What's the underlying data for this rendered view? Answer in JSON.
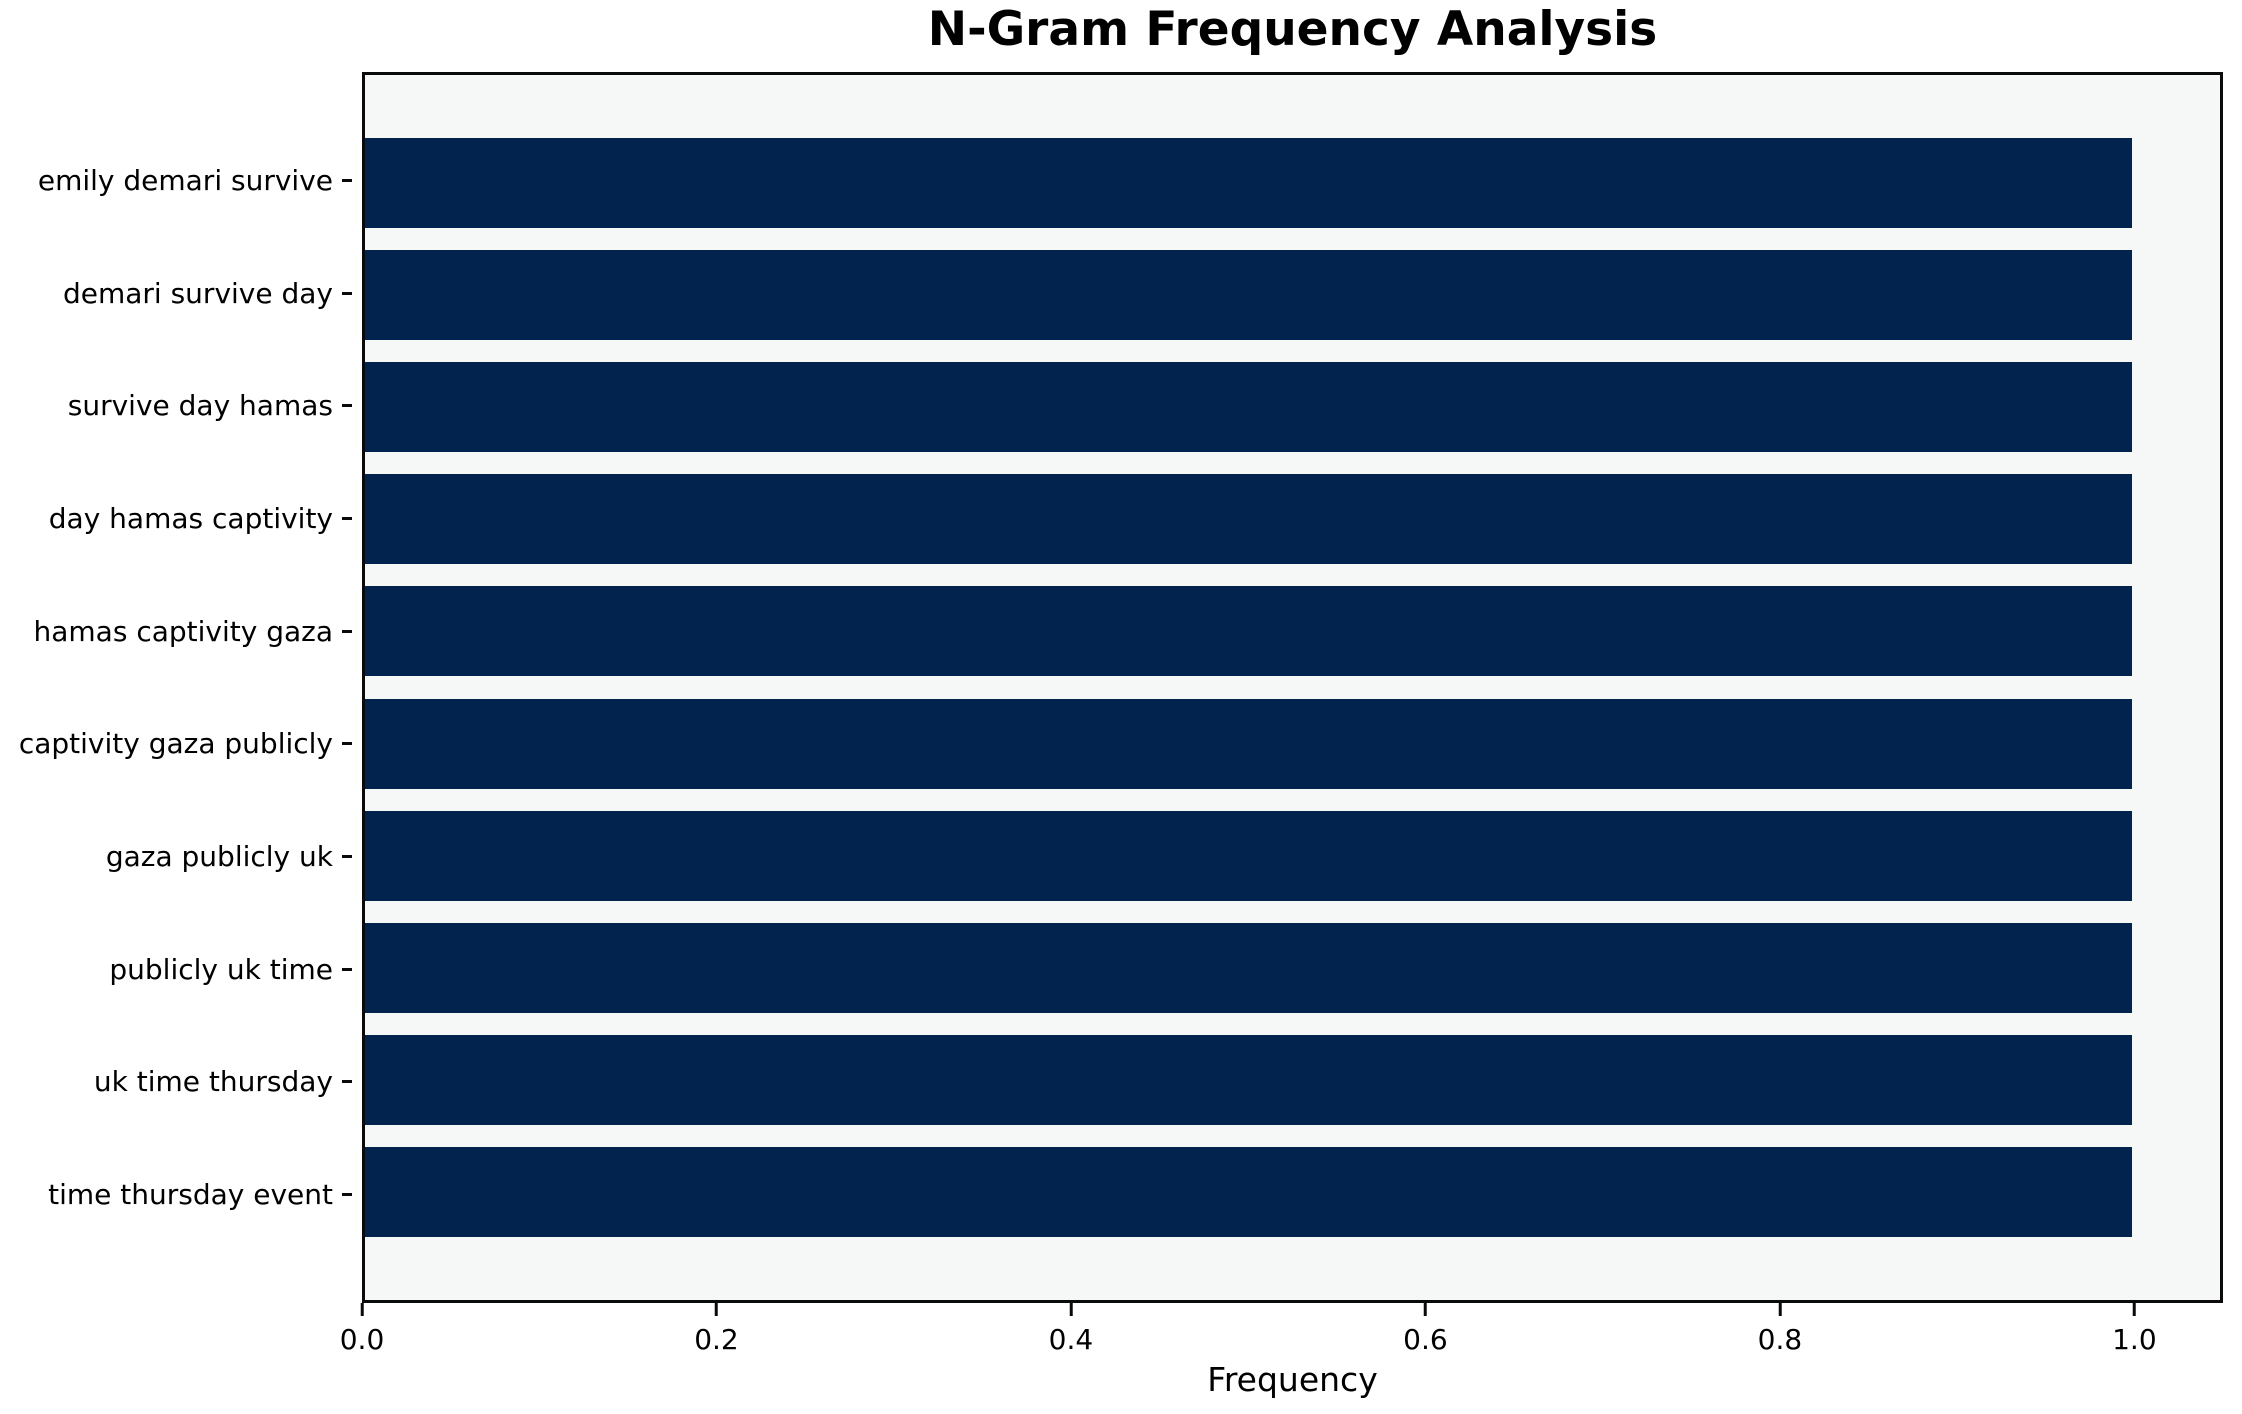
{
  "colors": {
    "bar": "#02234e",
    "plot_background": "#f6f7f7",
    "figure_background": "#ffffff",
    "spine": "#0a0a0a",
    "text": "#000000"
  },
  "chart_data": {
    "type": "bar",
    "orientation": "horizontal",
    "title": "N-Gram Frequency Analysis",
    "xlabel": "Frequency",
    "ylabel": "",
    "categories": [
      "emily demari survive",
      "demari survive day",
      "survive day hamas",
      "day hamas captivity",
      "hamas captivity gaza",
      "captivity gaza publicly",
      "gaza publicly uk",
      "publicly uk time",
      "uk time thursday",
      "time thursday event"
    ],
    "values": [
      1.0,
      1.0,
      1.0,
      1.0,
      1.0,
      1.0,
      1.0,
      1.0,
      1.0,
      1.0
    ],
    "xlim": [
      0,
      1.05
    ],
    "xticks": [
      0.0,
      0.2,
      0.4,
      0.6,
      0.8,
      1.0
    ],
    "xtick_labels": [
      "0.0",
      "0.2",
      "0.4",
      "0.6",
      "0.8",
      "1.0"
    ],
    "grid": false,
    "legend": null,
    "bar_fraction_of_slot": 0.8
  }
}
